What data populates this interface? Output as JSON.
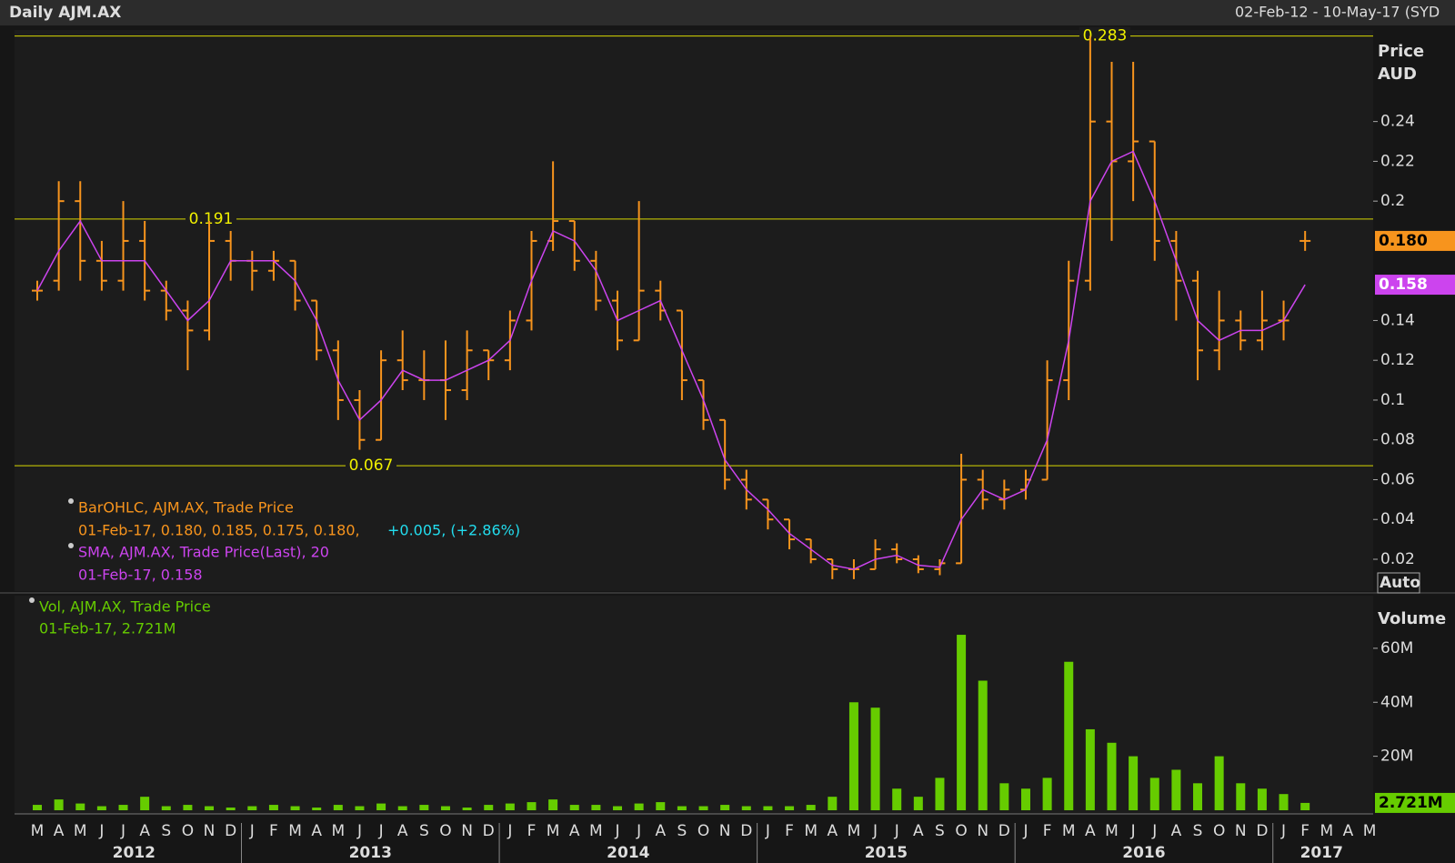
{
  "header": {
    "title": "Daily AJM.AX",
    "range": "02-Feb-12 - 10-May-17 (SYD"
  },
  "x_axis": {
    "months": [
      "M",
      "A",
      "M",
      "J",
      "J",
      "A",
      "S",
      "O",
      "N",
      "D",
      "J",
      "F",
      "M",
      "A",
      "M",
      "J",
      "J",
      "A",
      "S",
      "O",
      "N",
      "D",
      "J",
      "F",
      "M",
      "A",
      "M",
      "J",
      "J",
      "A",
      "S",
      "O",
      "N",
      "D",
      "J",
      "F",
      "M",
      "A",
      "M",
      "J",
      "J",
      "A",
      "S",
      "O",
      "N",
      "D",
      "J",
      "F",
      "M",
      "A",
      "M",
      "J",
      "J",
      "A",
      "S",
      "O",
      "N",
      "D",
      "J",
      "F",
      "M",
      "A",
      "M"
    ],
    "years": [
      "2012",
      "2013",
      "2014",
      "2015",
      "2016",
      "2017"
    ]
  },
  "chart_data": [
    {
      "type": "ohlc",
      "y_label": [
        "Price",
        "AUD"
      ],
      "scale_button": "Auto",
      "ylim": [
        0.004,
        0.286
      ],
      "yticks": [
        0.02,
        0.04,
        0.06,
        0.08,
        0.1,
        0.12,
        0.14,
        0.2,
        0.22,
        0.24
      ],
      "levels": [
        0.283,
        0.191,
        0.067
      ],
      "level_color": "#d8d800",
      "series": [
        {
          "name": "BarOHLC, AJM.AX, Trade Price",
          "color": "#f7941d",
          "open": [
            0.155,
            0.16,
            0.2,
            0.17,
            0.16,
            0.18,
            0.155,
            0.145,
            0.135,
            0.18,
            0.17,
            0.165,
            0.17,
            0.15,
            0.125,
            0.1,
            0.08,
            0.12,
            0.11,
            0.11,
            0.105,
            0.125,
            0.12,
            0.14,
            0.18,
            0.19,
            0.17,
            0.15,
            0.13,
            0.155,
            0.145,
            0.11,
            0.09,
            0.06,
            0.05,
            0.04,
            0.03,
            0.02,
            0.015,
            0.015,
            0.025,
            0.02,
            0.015,
            0.018,
            0.06,
            0.05,
            0.055,
            0.06,
            0.11,
            0.16,
            0.24,
            0.22,
            0.23,
            0.18,
            0.16,
            0.125,
            0.14,
            0.13,
            0.14,
            0.18
          ],
          "high": [
            0.16,
            0.21,
            0.21,
            0.18,
            0.2,
            0.19,
            0.16,
            0.15,
            0.19,
            0.185,
            0.175,
            0.175,
            0.17,
            0.15,
            0.13,
            0.105,
            0.125,
            0.135,
            0.125,
            0.13,
            0.135,
            0.125,
            0.145,
            0.185,
            0.22,
            0.19,
            0.175,
            0.155,
            0.2,
            0.16,
            0.145,
            0.11,
            0.09,
            0.065,
            0.05,
            0.04,
            0.03,
            0.02,
            0.02,
            0.03,
            0.028,
            0.022,
            0.02,
            0.073,
            0.065,
            0.06,
            0.065,
            0.12,
            0.17,
            0.283,
            0.27,
            0.27,
            0.23,
            0.185,
            0.165,
            0.155,
            0.145,
            0.155,
            0.15,
            0.185
          ],
          "low": [
            0.15,
            0.155,
            0.16,
            0.155,
            0.155,
            0.15,
            0.14,
            0.115,
            0.13,
            0.16,
            0.155,
            0.16,
            0.145,
            0.12,
            0.09,
            0.075,
            0.08,
            0.105,
            0.1,
            0.09,
            0.1,
            0.11,
            0.115,
            0.135,
            0.175,
            0.165,
            0.145,
            0.125,
            0.13,
            0.14,
            0.1,
            0.085,
            0.055,
            0.045,
            0.035,
            0.025,
            0.018,
            0.01,
            0.01,
            0.015,
            0.018,
            0.013,
            0.012,
            0.018,
            0.045,
            0.045,
            0.05,
            0.06,
            0.1,
            0.155,
            0.18,
            0.2,
            0.17,
            0.14,
            0.11,
            0.115,
            0.125,
            0.125,
            0.13,
            0.175
          ],
          "close": [
            0.155,
            0.2,
            0.17,
            0.16,
            0.18,
            0.155,
            0.145,
            0.135,
            0.18,
            0.17,
            0.165,
            0.17,
            0.15,
            0.125,
            0.1,
            0.08,
            0.12,
            0.11,
            0.11,
            0.105,
            0.125,
            0.12,
            0.14,
            0.18,
            0.19,
            0.17,
            0.15,
            0.13,
            0.155,
            0.145,
            0.11,
            0.09,
            0.06,
            0.05,
            0.04,
            0.03,
            0.02,
            0.015,
            0.015,
            0.025,
            0.02,
            0.015,
            0.018,
            0.06,
            0.05,
            0.055,
            0.06,
            0.11,
            0.16,
            0.24,
            0.22,
            0.23,
            0.18,
            0.16,
            0.125,
            0.14,
            0.13,
            0.14,
            0.14,
            0.18
          ]
        },
        {
          "name": "SMA, AJM.AX, Trade Price(Last),  20",
          "color": "#cc44ee",
          "values": [
            0.155,
            0.175,
            0.19,
            0.17,
            0.17,
            0.17,
            0.155,
            0.14,
            0.15,
            0.17,
            0.17,
            0.17,
            0.16,
            0.14,
            0.11,
            0.09,
            0.1,
            0.115,
            0.11,
            0.11,
            0.115,
            0.12,
            0.13,
            0.16,
            0.185,
            0.18,
            0.165,
            0.14,
            0.145,
            0.15,
            0.125,
            0.1,
            0.07,
            0.055,
            0.045,
            0.033,
            0.025,
            0.017,
            0.015,
            0.02,
            0.022,
            0.017,
            0.016,
            0.04,
            0.055,
            0.05,
            0.055,
            0.08,
            0.13,
            0.2,
            0.22,
            0.225,
            0.2,
            0.17,
            0.14,
            0.13,
            0.135,
            0.135,
            0.14,
            0.158
          ]
        }
      ],
      "readouts": [
        "01-Feb-17, 0.180, 0.185, 0.175, 0.180,",
        "+0.005, (+2.86%)",
        "01-Feb-17, 0.158"
      ],
      "last_values": [
        0.18,
        0.158
      ],
      "last_value_labels": [
        "0.180",
        "0.158"
      ]
    },
    {
      "type": "bar",
      "y_label": "Volume",
      "name": "Vol, AJM.AX, Trade Price",
      "readout": "01-Feb-17, 2.721M",
      "color": "#66cc00",
      "ylim": [
        0,
        79500000
      ],
      "yticks": [
        {
          "value": 20000000,
          "label": "20M"
        },
        {
          "value": 40000000,
          "label": "40M"
        },
        {
          "value": 60000000,
          "label": "60M"
        }
      ],
      "values": [
        2000000,
        4000000,
        2500000,
        1500000,
        2000000,
        5000000,
        1500000,
        2000000,
        1500000,
        1000000,
        1500000,
        2000000,
        1500000,
        1000000,
        2000000,
        1500000,
        2500000,
        1500000,
        2000000,
        1500000,
        1000000,
        2000000,
        2500000,
        3000000,
        4000000,
        2000000,
        2000000,
        1500000,
        2500000,
        3000000,
        1500000,
        1500000,
        2000000,
        1500000,
        1500000,
        1500000,
        2000000,
        5000000,
        40000000,
        38000000,
        8000000,
        5000000,
        12000000,
        65000000,
        48000000,
        10000000,
        8000000,
        12000000,
        55000000,
        30000000,
        25000000,
        20000000,
        12000000,
        15000000,
        10000000,
        20000000,
        10000000,
        8000000,
        6000000,
        2721000
      ],
      "last_value": 2721000,
      "last_value_label": "2.721M"
    }
  ]
}
